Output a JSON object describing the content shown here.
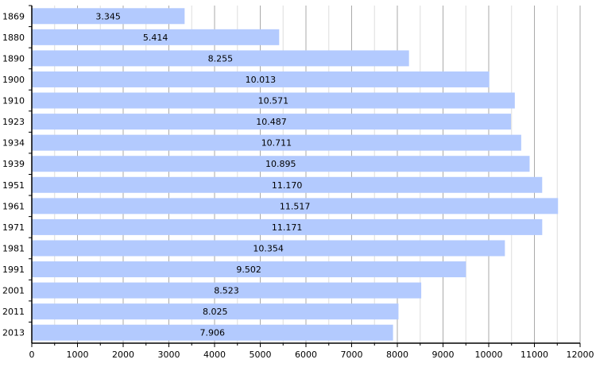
{
  "chart_data": {
    "type": "bar",
    "orientation": "horizontal",
    "title": "",
    "xlabel": "",
    "ylabel": "",
    "categories": [
      "1869",
      "1880",
      "1890",
      "1900",
      "1910",
      "1923",
      "1934",
      "1939",
      "1951",
      "1961",
      "1971",
      "1981",
      "1991",
      "2001",
      "2011",
      "2013"
    ],
    "values": [
      3345,
      5414,
      8255,
      10013,
      10571,
      10487,
      10711,
      10895,
      11170,
      11517,
      11171,
      10354,
      9502,
      8523,
      8025,
      7906
    ],
    "value_labels": [
      "3.345",
      "5.414",
      "8.255",
      "10.013",
      "10.571",
      "10.487",
      "10.711",
      "10.895",
      "11.170",
      "11.517",
      "11.171",
      "10.354",
      "9.502",
      "8.523",
      "8.025",
      "7.906"
    ],
    "xlim": [
      0,
      12000
    ],
    "xticks": [
      "0",
      "1000",
      "2000",
      "3000",
      "4000",
      "5000",
      "6000",
      "7000",
      "8000",
      "9000",
      "10000",
      "11000",
      "12000"
    ],
    "grid": true,
    "bar_color": "#b3cafe"
  }
}
